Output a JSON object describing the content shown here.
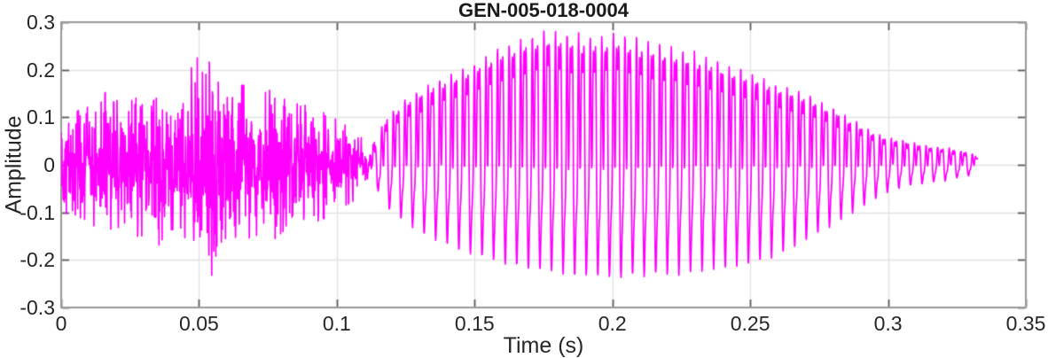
{
  "figure": {
    "background": "#ffffff"
  },
  "chart_data": {
    "type": "line",
    "title": "GEN-005-018-0004",
    "xlabel": "Time (s)",
    "ylabel": "Amplitude",
    "xlim": [
      0,
      0.35
    ],
    "ylim": [
      -0.3,
      0.3
    ],
    "xticks": [
      0,
      0.05,
      0.1,
      0.15,
      0.2,
      0.25,
      0.3,
      0.35
    ],
    "xtick_labels": [
      "0",
      "0.05",
      "0.1",
      "0.15",
      "0.2",
      "0.25",
      "0.3",
      "0.35"
    ],
    "yticks": [
      -0.3,
      -0.2,
      -0.1,
      0,
      0.1,
      0.2,
      0.3
    ],
    "ytick_labels": [
      "-0.3",
      "-0.2",
      "-0.1",
      "0",
      "0.1",
      "0.2",
      "0.3"
    ],
    "grid": true,
    "legend": "none",
    "tick_direction": "in",
    "axis_colors": {
      "box": "#9a9a9a",
      "tick": "#5a5a5a",
      "grid": "#e2e2e2",
      "label": "#262626",
      "title": "#1a1a1a"
    },
    "series": [
      {
        "name": "GEN-005-018-0004",
        "kind": "audio-waveform",
        "color": "#FF00FF",
        "line_width": 1.7,
        "duration_s": 0.3326,
        "segments": [
          {
            "type": "noise-burst",
            "t_start": 0,
            "t_end": 0.112,
            "pos_envelope": [
              [
                0,
                0.13
              ],
              [
                0.004,
                0.105
              ],
              [
                0.009,
                0.12
              ],
              [
                0.013,
                0.11
              ],
              [
                0.018,
                0.175
              ],
              [
                0.023,
                0.125
              ],
              [
                0.028,
                0.14
              ],
              [
                0.033,
                0.13
              ],
              [
                0.038,
                0.155
              ],
              [
                0.043,
                0.165
              ],
              [
                0.048,
                0.21
              ],
              [
                0.052,
                0.24
              ],
              [
                0.056,
                0.175
              ],
              [
                0.061,
                0.15
              ],
              [
                0.066,
                0.165
              ],
              [
                0.071,
                0.14
              ],
              [
                0.076,
                0.155
              ],
              [
                0.081,
                0.135
              ],
              [
                0.086,
                0.125
              ],
              [
                0.091,
                0.12
              ],
              [
                0.096,
                0.105
              ],
              [
                0.101,
                0.09
              ],
              [
                0.106,
                0.07
              ],
              [
                0.112,
                0.05
              ]
            ],
            "neg_envelope": [
              [
                0,
                0.12
              ],
              [
                0.004,
                0.1
              ],
              [
                0.009,
                0.115
              ],
              [
                0.013,
                0.13
              ],
              [
                0.018,
                0.14
              ],
              [
                0.023,
                0.12
              ],
              [
                0.028,
                0.15
              ],
              [
                0.033,
                0.19
              ],
              [
                0.038,
                0.14
              ],
              [
                0.043,
                0.135
              ],
              [
                0.048,
                0.18
              ],
              [
                0.053,
                0.27
              ],
              [
                0.057,
                0.165
              ],
              [
                0.061,
                0.145
              ],
              [
                0.066,
                0.155
              ],
              [
                0.071,
                0.145
              ],
              [
                0.076,
                0.16
              ],
              [
                0.081,
                0.135
              ],
              [
                0.086,
                0.14
              ],
              [
                0.091,
                0.12
              ],
              [
                0.096,
                0.11
              ],
              [
                0.101,
                0.09
              ],
              [
                0.106,
                0.075
              ],
              [
                0.112,
                0.05
              ]
            ]
          },
          {
            "type": "periodic-voiced",
            "t_start": 0.112,
            "t_end": 0.3326,
            "pitch_hz": 238,
            "harmonics": [
              {
                "mult": 1,
                "amp": 0.58,
                "phase": 0
              },
              {
                "mult": 2,
                "amp": 0.42,
                "phase": 2.0
              },
              {
                "mult": 4,
                "amp": 0.2,
                "phase": 0.8
              }
            ],
            "pos_envelope": [
              [
                0.112,
                0.05
              ],
              [
                0.118,
                0.1
              ],
              [
                0.125,
                0.14
              ],
              [
                0.133,
                0.17
              ],
              [
                0.141,
                0.19
              ],
              [
                0.15,
                0.215
              ],
              [
                0.158,
                0.245
              ],
              [
                0.168,
                0.27
              ],
              [
                0.177,
                0.285
              ],
              [
                0.186,
                0.275
              ],
              [
                0.195,
                0.27
              ],
              [
                0.202,
                0.28
              ],
              [
                0.21,
                0.265
              ],
              [
                0.22,
                0.25
              ],
              [
                0.23,
                0.235
              ],
              [
                0.24,
                0.215
              ],
              [
                0.25,
                0.195
              ],
              [
                0.26,
                0.17
              ],
              [
                0.27,
                0.15
              ],
              [
                0.28,
                0.12
              ],
              [
                0.29,
                0.085
              ],
              [
                0.298,
                0.06
              ],
              [
                0.306,
                0.05
              ],
              [
                0.314,
                0.04
              ],
              [
                0.322,
                0.035
              ],
              [
                0.33,
                0.025
              ],
              [
                0.3326,
                0.015
              ]
            ],
            "neg_envelope": [
              [
                0.112,
                0.05
              ],
              [
                0.118,
                0.09
              ],
              [
                0.125,
                0.12
              ],
              [
                0.133,
                0.15
              ],
              [
                0.141,
                0.17
              ],
              [
                0.15,
                0.19
              ],
              [
                0.158,
                0.205
              ],
              [
                0.168,
                0.215
              ],
              [
                0.177,
                0.225
              ],
              [
                0.186,
                0.23
              ],
              [
                0.195,
                0.235
              ],
              [
                0.202,
                0.24
              ],
              [
                0.21,
                0.235
              ],
              [
                0.22,
                0.23
              ],
              [
                0.23,
                0.225
              ],
              [
                0.24,
                0.215
              ],
              [
                0.25,
                0.21
              ],
              [
                0.26,
                0.19
              ],
              [
                0.27,
                0.16
              ],
              [
                0.28,
                0.125
              ],
              [
                0.29,
                0.09
              ],
              [
                0.298,
                0.06
              ],
              [
                0.306,
                0.045
              ],
              [
                0.314,
                0.038
              ],
              [
                0.322,
                0.032
              ],
              [
                0.33,
                0.022
              ],
              [
                0.3326,
                0.012
              ]
            ]
          }
        ]
      }
    ]
  }
}
